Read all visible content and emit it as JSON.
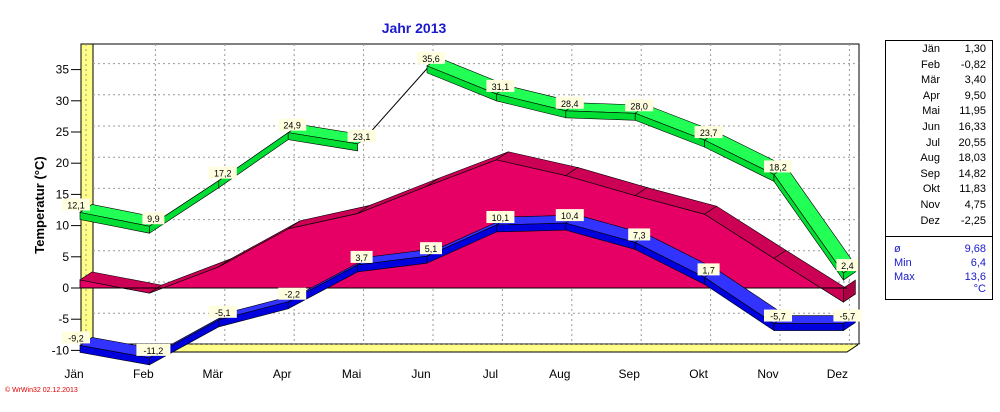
{
  "chart_data": {
    "type": "line",
    "title": "Jahr  2013",
    "xlabel": "",
    "ylabel": "Temperatur  (°C)",
    "categories": [
      "Jän",
      "Feb",
      "Mär",
      "Apr",
      "Mai",
      "Jun",
      "Jul",
      "Aug",
      "Sep",
      "Okt",
      "Nov",
      "Dez"
    ],
    "ylim": [
      -11,
      38
    ],
    "yticks": [
      -10,
      -5,
      0,
      5,
      10,
      15,
      20,
      25,
      30,
      35
    ],
    "grid": true,
    "series": [
      {
        "values": [
          12.1,
          9.9,
          17.2,
          24.9,
          23.1,
          35.6,
          31.1,
          28.4,
          28.0,
          23.7,
          18.2,
          2.4
        ],
        "labels": [
          "12,1",
          "9,9",
          "17,2",
          "24,9",
          "23,1",
          "35,6",
          "31,1",
          "28,4",
          "28,0",
          "23,7",
          "18,2",
          "2,4"
        ],
        "color": "#00ee33"
      },
      {
        "values": [
          1.3,
          -0.82,
          3.4,
          9.5,
          11.95,
          16.33,
          20.55,
          18.03,
          14.82,
          11.83,
          4.75,
          -2.25
        ],
        "color": "#e60066"
      },
      {
        "values": [
          -9.2,
          -11.2,
          -5.1,
          -2.2,
          3.7,
          5.1,
          10.1,
          10.4,
          7.3,
          1.7,
          -5.7,
          -5.7
        ],
        "labels": [
          "-9,2",
          "-11,2",
          "-5,1",
          "-2,2",
          "3,7",
          "5,1",
          "10,1",
          "10,4",
          "7,3",
          "1,7",
          "-5,7",
          "-5,7"
        ],
        "color": "#0000ee"
      }
    ]
  },
  "legend": {
    "months": [
      {
        "m": "Jän",
        "v": "1,30"
      },
      {
        "m": "Feb",
        "v": "-0,82"
      },
      {
        "m": "Mär",
        "v": "3,40"
      },
      {
        "m": "Apr",
        "v": "9,50"
      },
      {
        "m": "Mai",
        "v": "11,95"
      },
      {
        "m": "Jun",
        "v": "16,33"
      },
      {
        "m": "Jul",
        "v": "20,55"
      },
      {
        "m": "Aug",
        "v": "18,03"
      },
      {
        "m": "Sep",
        "v": "14,82"
      },
      {
        "m": "Okt",
        "v": "11,83"
      },
      {
        "m": "Nov",
        "v": "4,75"
      },
      {
        "m": "Dez",
        "v": "-2,25"
      }
    ],
    "stats": [
      {
        "m": "ø",
        "v": "9,68"
      },
      {
        "m": "Min",
        "v": "6,4"
      },
      {
        "m": "Max",
        "v": "13,6"
      }
    ],
    "unit": "°C"
  },
  "footer": "© WrWin32  02.12.2013"
}
